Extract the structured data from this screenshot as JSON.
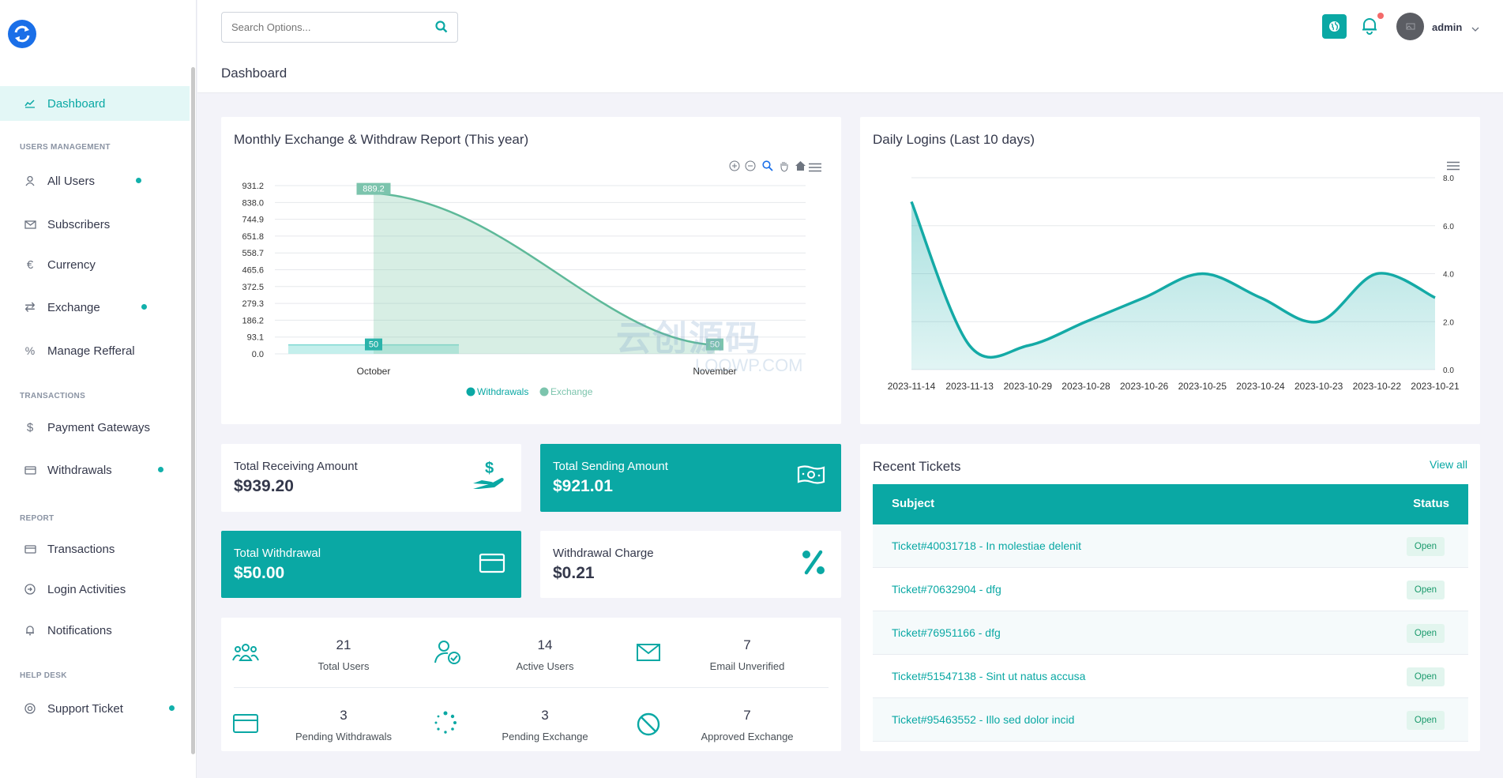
{
  "sidebar": {
    "items": [
      {
        "label": "Dashboard",
        "icon": "chart-line-icon",
        "active": true
      },
      {
        "label": "All Users",
        "icon": "user-icon",
        "dot": true
      },
      {
        "label": "Subscribers",
        "icon": "envelope-icon"
      },
      {
        "label": "Currency",
        "icon": "euro-icon"
      },
      {
        "label": "Exchange",
        "icon": "exchange-arrows-icon",
        "dot": true
      },
      {
        "label": "Manage Refferal",
        "icon": "percent-icon"
      },
      {
        "label": "Payment Gateways",
        "icon": "dollar-icon"
      },
      {
        "label": "Withdrawals",
        "icon": "credit-card-icon",
        "dot": true
      },
      {
        "label": "Transactions",
        "icon": "card-icon"
      },
      {
        "label": "Login Activities",
        "icon": "login-icon"
      },
      {
        "label": "Notifications",
        "icon": "bell-icon"
      },
      {
        "label": "Support Ticket",
        "icon": "lifebuoy-icon",
        "dot": true
      }
    ],
    "sections": [
      "USERS MANAGEMENT",
      "TRANSACTIONS",
      "REPORT",
      "HELP DESK"
    ]
  },
  "header": {
    "search_placeholder": "Search Options...",
    "page_title": "Dashboard",
    "user_name": "admin"
  },
  "colors": {
    "accent": "#0aa8a4",
    "accent_light": "#e3f7f6",
    "bell_dot": "#f46a6a"
  },
  "monthly_chart": {
    "title": "Monthly Exchange & Withdraw Report (This year)",
    "legend": [
      "Withdrawals",
      "Exchange"
    ]
  },
  "daily_chart": {
    "title": "Daily Logins (Last 10 days)"
  },
  "chart_data": [
    {
      "type": "area",
      "title": "Monthly Exchange & Withdraw Report (This year)",
      "categories": [
        "October",
        "November"
      ],
      "series": [
        {
          "name": "Withdrawals",
          "values": [
            50,
            null
          ]
        },
        {
          "name": "Exchange",
          "values": [
            889.2,
            50
          ]
        }
      ],
      "yticks": [
        "931.2",
        "838.0",
        "744.9",
        "651.8",
        "558.7",
        "465.6",
        "372.5",
        "279.3",
        "186.2",
        "93.1",
        "0.0"
      ],
      "ylim": [
        0,
        931.2
      ],
      "data_labels": [
        "889.2",
        "50",
        "50"
      ],
      "legend": "bottom"
    },
    {
      "type": "area",
      "title": "Daily Logins (Last 10 days)",
      "categories": [
        "2023-11-14",
        "2023-11-13",
        "2023-10-29",
        "2023-10-28",
        "2023-10-26",
        "2023-10-25",
        "2023-10-24",
        "2023-10-23",
        "2023-10-22",
        "2023-10-21"
      ],
      "values": [
        7,
        1,
        1,
        2,
        3,
        4,
        3,
        2,
        4,
        3
      ],
      "yticks": [
        "8.0",
        "6.0",
        "4.0",
        "2.0",
        "0.0"
      ],
      "ylim": [
        0,
        8
      ],
      "y_axis_side": "right"
    }
  ],
  "stats": {
    "receiving": {
      "label": "Total Receiving Amount",
      "value": "$939.20"
    },
    "sending": {
      "label": "Total Sending Amount",
      "value": "$921.01"
    },
    "withdrawal": {
      "label": "Total Withdrawal",
      "value": "$50.00"
    },
    "charge": {
      "label": "Withdrawal Charge",
      "value": "$0.21"
    }
  },
  "counts": [
    {
      "num": "21",
      "label": "Total Users",
      "icon": "users-group-icon"
    },
    {
      "num": "14",
      "label": "Active Users",
      "icon": "user-check-icon"
    },
    {
      "num": "7",
      "label": "Email Unverified",
      "icon": "envelope-icon"
    },
    {
      "num": "3",
      "label": "Pending Withdrawals",
      "icon": "credit-card-icon"
    },
    {
      "num": "3",
      "label": "Pending Exchange",
      "icon": "spinner-icon"
    },
    {
      "num": "7",
      "label": "Approved Exchange",
      "icon": "ban-icon"
    }
  ],
  "tickets": {
    "title": "Recent Tickets",
    "view_all": "View all",
    "col_subject": "Subject",
    "col_status": "Status",
    "rows": [
      {
        "subject": "Ticket#40031718 - In molestiae delenit",
        "status": "Open"
      },
      {
        "subject": "Ticket#70632904 - dfg",
        "status": "Open"
      },
      {
        "subject": "Ticket#76951166 - dfg",
        "status": "Open"
      },
      {
        "subject": "Ticket#51547138 - Sint ut natus accusa",
        "status": "Open"
      },
      {
        "subject": "Ticket#95463552 - Illo sed dolor incid",
        "status": "Open"
      }
    ]
  },
  "watermark": {
    "line1": "云创源码",
    "line2": "LOOWP.COM"
  }
}
